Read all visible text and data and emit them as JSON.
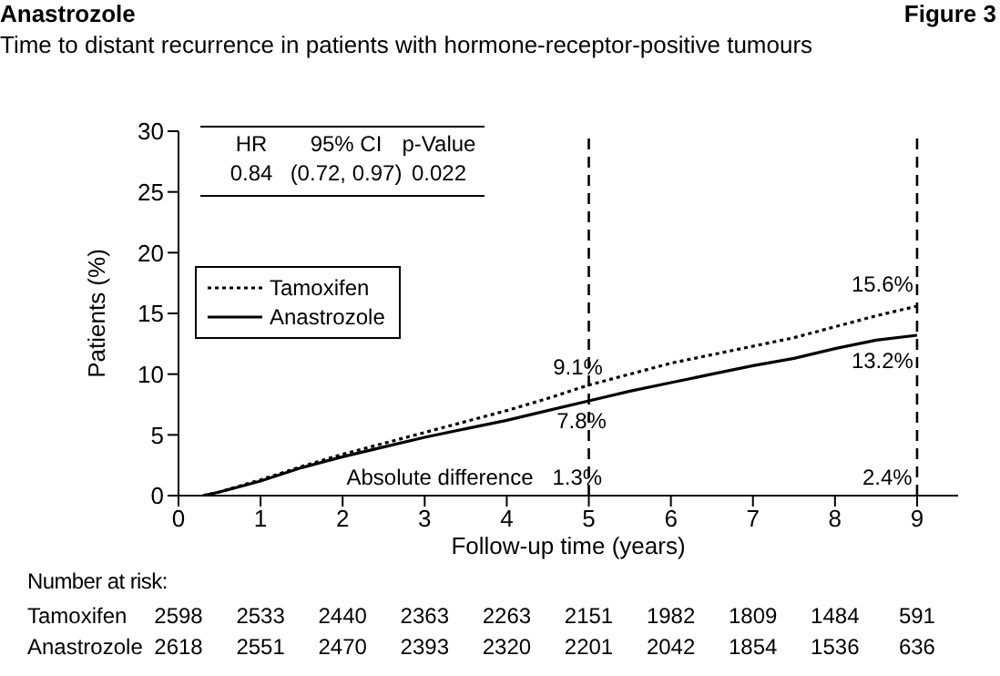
{
  "chart_data": {
    "type": "line",
    "title": "Anastrozole",
    "subtitle": "Time to distant recurrence in patients with hormone-receptor-positive tumours",
    "xlabel": "Follow-up time (years)",
    "ylabel": "Patients (%)",
    "x": [
      0.3,
      0.5,
      1,
      1.5,
      2,
      2.5,
      3,
      3.5,
      4,
      4.5,
      5,
      5.5,
      6,
      6.5,
      7,
      7.5,
      8,
      8.5,
      9
    ],
    "series": [
      {
        "name": "Tamoxifen",
        "color": "#000000",
        "line_style": "dotted",
        "values": [
          0,
          0.3,
          1.3,
          2.4,
          3.4,
          4.3,
          5.2,
          6.1,
          7.0,
          8.0,
          9.1,
          10.0,
          10.9,
          11.6,
          12.3,
          13.0,
          13.9,
          14.8,
          15.6
        ]
      },
      {
        "name": "Anastrozole",
        "color": "#000000",
        "line_style": "solid",
        "values": [
          0,
          0.3,
          1.2,
          2.3,
          3.2,
          4.0,
          4.8,
          5.5,
          6.2,
          7.0,
          7.8,
          8.6,
          9.3,
          10.0,
          10.7,
          11.3,
          12.1,
          12.8,
          13.2
        ]
      }
    ],
    "xlim": [
      0,
      9.5
    ],
    "xticks": [
      0,
      1,
      2,
      3,
      4,
      5,
      6,
      7,
      8,
      9
    ],
    "ylim": [
      0,
      30
    ],
    "yticks": [
      0,
      5,
      10,
      15,
      20,
      25,
      30
    ],
    "grid": false,
    "legend": "top left",
    "ref_lines": [
      {
        "axis": "x",
        "value": 5,
        "line_style": "dashed",
        "color": "#000000"
      },
      {
        "axis": "x",
        "value": 9,
        "line_style": "dashed",
        "color": "#000000"
      }
    ],
    "annotations": [
      "Figure 3",
      "HR",
      "95% CI",
      "p-Value",
      "0.84",
      "(0.72, 0.97)",
      "0.022",
      "9.1%",
      "7.8%",
      "1.3%",
      "15.6%",
      "13.2%",
      "2.4%",
      "Absolute difference",
      "Number at risk:",
      "Tamoxifen",
      "2598",
      "2533",
      "2440",
      "2363",
      "2263",
      "2151",
      "1982",
      "1809",
      "1484",
      "591",
      "Anastrozole",
      "2618",
      "2551",
      "2470",
      "2393",
      "2320",
      "2201",
      "2042",
      "1854",
      "1536",
      "636"
    ]
  }
}
